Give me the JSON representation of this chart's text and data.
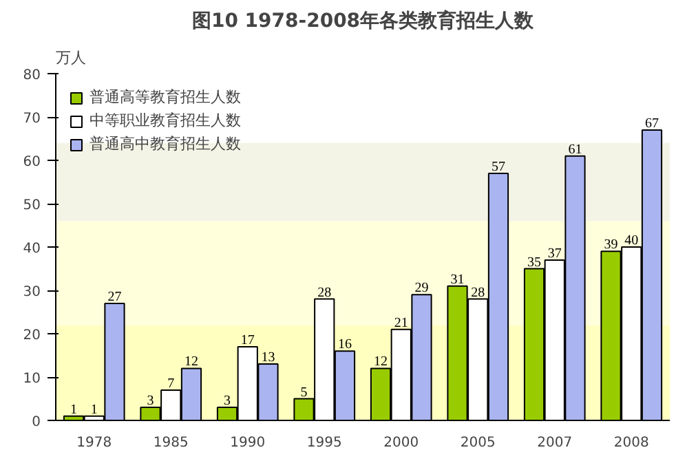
{
  "chart_data": {
    "type": "bar",
    "title": "图10 1978-2008年各类教育招生人数",
    "ylabel": "万人",
    "categories": [
      "1978",
      "1985",
      "1990",
      "1995",
      "2000",
      "2005",
      "2007",
      "2008"
    ],
    "series": [
      {
        "name": "普通高等教育招生人数",
        "color": "#99cc00",
        "values": [
          1,
          3,
          3,
          5,
          12,
          31,
          35,
          39
        ]
      },
      {
        "name": "中等职业教育招生人数",
        "color": "#ffffff",
        "values": [
          1,
          7,
          17,
          28,
          21,
          28,
          37,
          40
        ]
      },
      {
        "name": "普通高中教育招生人数",
        "color": "#aab4f0",
        "values": [
          27,
          12,
          13,
          16,
          29,
          57,
          61,
          67
        ]
      }
    ],
    "ylim": [
      0,
      80
    ],
    "yticks": [
      0,
      10,
      20,
      30,
      40,
      50,
      60,
      70,
      80
    ],
    "bands": [
      {
        "axis": "y",
        "from": 0,
        "to": 22,
        "color": "#ffffc0"
      },
      {
        "axis": "y",
        "from": 22,
        "to": 46,
        "color": "#ffffdc"
      },
      {
        "axis": "y",
        "from": 46,
        "to": 64,
        "color": "#f4f4e6"
      }
    ],
    "data_labels": true,
    "legend": "top left"
  }
}
